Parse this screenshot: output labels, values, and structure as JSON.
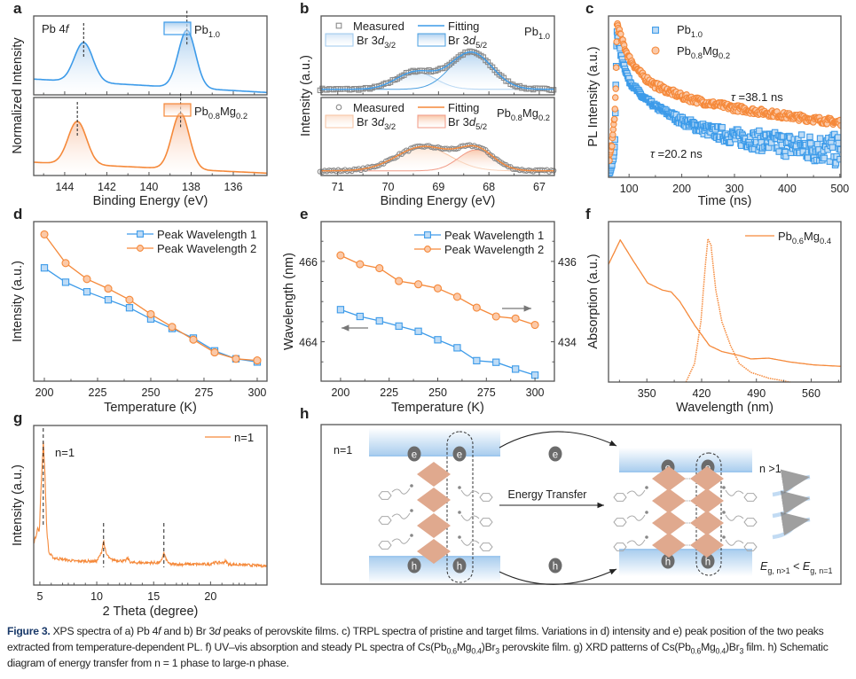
{
  "colors": {
    "blue": "#3d9be9",
    "blue_light": "#a9cdee",
    "orange": "#f5893a",
    "orange_light": "#f9c6a6",
    "frame": "#555555",
    "text": "#222222",
    "marker_gray": "#8a8a8a",
    "diamond": "#e0a98e",
    "carrier": "#6b6b6b"
  },
  "panel_labels": [
    "a",
    "b",
    "c",
    "d",
    "e",
    "f",
    "g",
    "h"
  ],
  "chart_data": [
    {
      "id": "a",
      "type": "line",
      "annotation": [
        {
          "t": "Pb 4"
        },
        {
          "t": "f",
          "it": 1
        }
      ],
      "xlabel": "Binding Energy (eV)",
      "ylabel": "Normalized Intensity",
      "xlim": [
        145.47,
        134.4
      ],
      "xticks": [
        144,
        142,
        140,
        138,
        136
      ],
      "ylim": [
        0,
        1
      ],
      "panels": [
        {
          "name": [
            {
              "t": "Pb"
            },
            {
              "t": "1.0",
              "sub": 1
            }
          ],
          "color": "blue",
          "baseline": [
            0.2,
            0.03
          ],
          "peaks": [
            {
              "center": 143.1,
              "height": 0.5,
              "width": 0.62
            },
            {
              "center": 138.2,
              "height": 0.73,
              "width": 0.58
            }
          ]
        },
        {
          "name": [
            {
              "t": "Pb"
            },
            {
              "t": "0.8",
              "sub": 1
            },
            {
              "t": "Mg"
            },
            {
              "t": "0.2",
              "sub": 1
            }
          ],
          "color": "orange",
          "baseline": [
            0.17,
            0.03
          ],
          "peaks": [
            {
              "center": 143.4,
              "height": 0.55,
              "width": 0.62
            },
            {
              "center": 138.5,
              "height": 0.72,
              "width": 0.58
            }
          ]
        }
      ]
    },
    {
      "id": "b",
      "type": "line",
      "xlabel": "Binding Energy (eV)",
      "ylabel": "Intensity (a.u.)",
      "xlim": [
        71.33,
        66.7
      ],
      "xticks": [
        71,
        70,
        69,
        68,
        67
      ],
      "ylim": [
        0,
        1
      ],
      "legend": {
        "measured": "Measured",
        "fitting": "Fitting",
        "br32": [
          {
            "t": "Br 3"
          },
          {
            "t": "d",
            "it": 1
          },
          {
            "t": "3/2",
            "sub": 1
          }
        ],
        "br52": [
          {
            "t": "Br 3"
          },
          {
            "t": "d",
            "it": 1
          },
          {
            "t": "5/2",
            "sub": 1
          }
        ]
      },
      "panels": [
        {
          "sample": [
            {
              "t": "Pb"
            },
            {
              "t": "1.0",
              "sub": 1
            }
          ],
          "color": "blue",
          "marker": "square",
          "baseline": 0.07,
          "components": [
            {
              "name": "Br 3d3/2",
              "center": 69.45,
              "height": 0.22,
              "width": 0.55
            },
            {
              "name": "Br 3d5/2",
              "center": 68.35,
              "height": 0.47,
              "width": 0.58
            }
          ]
        },
        {
          "sample": [
            {
              "t": "Pb"
            },
            {
              "t": "0.8",
              "sub": 1
            },
            {
              "t": "Mg"
            },
            {
              "t": "0.2",
              "sub": 1
            }
          ],
          "color": "orange",
          "marker": "circle",
          "baseline": 0.06,
          "components": [
            {
              "name": "Br 3d3/2",
              "center": 69.3,
              "height": 0.31,
              "width": 0.75
            },
            {
              "name": "Br 3d5/2",
              "center": 68.25,
              "height": 0.27,
              "width": 0.5
            }
          ]
        }
      ]
    },
    {
      "id": "c",
      "type": "scatter",
      "xlabel": "Time (ns)",
      "ylabel": "PL Intensity (a.u.)",
      "xlim": [
        61,
        502
      ],
      "xticks": [
        100,
        200,
        300,
        400,
        500
      ],
      "ylim": [
        0,
        1
      ],
      "series": [
        {
          "name": [
            {
              "t": "Pb"
            },
            {
              "t": "1.0",
              "sub": 1
            }
          ],
          "color": "blue",
          "marker": "square",
          "tau_ns": 20.2,
          "annotation": [
            {
              "t": "τ",
              "it": 1
            },
            {
              "t": " =20.2 ns"
            }
          ],
          "points": [
            [
              62,
              0.02
            ],
            [
              70,
              0.12
            ],
            [
              73,
              0.2
            ],
            [
              75,
              0.6
            ],
            [
              77,
              0.9
            ],
            [
              85,
              0.75
            ],
            [
              100,
              0.6
            ],
            [
              125,
              0.5
            ],
            [
              150,
              0.44
            ],
            [
              200,
              0.35
            ],
            [
              250,
              0.29
            ],
            [
              300,
              0.25
            ],
            [
              400,
              0.2
            ],
            [
              500,
              0.165
            ]
          ]
        },
        {
          "name": [
            {
              "t": "Pb"
            },
            {
              "t": "0.8",
              "sub": 1
            },
            {
              "t": "Mg"
            },
            {
              "t": "0.2",
              "sub": 1
            }
          ],
          "color": "orange",
          "marker": "circle",
          "tau_ns": 38.1,
          "annotation": [
            {
              "t": "τ",
              "it": 1
            },
            {
              "t": " =38.1 ns"
            }
          ],
          "points": [
            [
              62,
              0.1
            ],
            [
              68,
              0.22
            ],
            [
              73,
              0.4
            ],
            [
              75,
              0.55
            ],
            [
              77,
              0.96
            ],
            [
              85,
              0.86
            ],
            [
              100,
              0.74
            ],
            [
              125,
              0.63
            ],
            [
              150,
              0.57
            ],
            [
              200,
              0.5
            ],
            [
              250,
              0.46
            ],
            [
              300,
              0.43
            ],
            [
              400,
              0.38
            ],
            [
              500,
              0.34
            ]
          ]
        }
      ]
    },
    {
      "id": "d",
      "type": "line",
      "xlabel": "Temperature (K)",
      "ylabel": "Intensity (a.u.)",
      "xlim": [
        195,
        304.6
      ],
      "xticks": [
        200,
        225,
        250,
        275,
        300
      ],
      "ylim": [
        0,
        100
      ],
      "x": [
        200,
        210,
        220,
        230,
        240,
        250,
        260,
        270,
        280,
        290,
        300
      ],
      "series": [
        {
          "name": "Peak Wavelength 1",
          "color": "blue",
          "marker": "square",
          "values": [
            71,
            62,
            56,
            51,
            46,
            39,
            33,
            27,
            19,
            14,
            12
          ]
        },
        {
          "name": "Peak Wavelength 2",
          "color": "orange",
          "marker": "circle",
          "values": [
            92,
            74,
            64,
            58,
            51,
            42,
            34,
            26,
            18,
            14,
            13
          ]
        }
      ]
    },
    {
      "id": "e",
      "type": "line",
      "xlabel": "Temperature (K)",
      "ylabel": "Wavelength (nm)",
      "xlim": [
        190,
        310
      ],
      "xticks": [
        200,
        225,
        250,
        275,
        300
      ],
      "ylim_left": [
        463.02,
        466.99
      ],
      "yticks_left": [
        464,
        466
      ],
      "ylim_right": [
        433.02,
        436.99
      ],
      "yticks_right": [
        434,
        436
      ],
      "x": [
        200,
        210,
        220,
        230,
        240,
        250,
        260,
        270,
        280,
        290,
        300
      ],
      "series": [
        {
          "name": "Peak Wavelength 1",
          "axis": "left",
          "color": "blue",
          "marker": "square",
          "values": [
            464.8,
            464.63,
            464.52,
            464.39,
            464.26,
            464.05,
            463.85,
            463.53,
            463.49,
            463.32,
            463.17
          ]
        },
        {
          "name": "Peak Wavelength 2",
          "axis": "right",
          "color": "orange",
          "marker": "circle",
          "values": [
            436.15,
            435.93,
            435.83,
            435.51,
            435.43,
            435.33,
            435.12,
            434.85,
            434.63,
            434.58,
            434.42
          ]
        }
      ]
    },
    {
      "id": "f",
      "type": "line",
      "xlabel": "Wavelength (nm)",
      "ylabel": "Absorption (a.u.)",
      "xlim": [
        301,
        598
      ],
      "xticks": [
        350,
        420,
        490,
        560
      ],
      "ylim": [
        0,
        1
      ],
      "legend": [
        {
          "t": "Pb"
        },
        {
          "t": "0.6",
          "sub": 1
        },
        {
          "t": "Mg"
        },
        {
          "t": "0.4",
          "sub": 1
        }
      ],
      "series": [
        {
          "name": "absorption",
          "color": "orange",
          "style": "solid",
          "points": [
            [
              301,
              0.733
            ],
            [
              316,
              0.886
            ],
            [
              332,
              0.76
            ],
            [
              351,
              0.617
            ],
            [
              370,
              0.573
            ],
            [
              381,
              0.562
            ],
            [
              392,
              0.503
            ],
            [
              411,
              0.355
            ],
            [
              430,
              0.227
            ],
            [
              446,
              0.19
            ],
            [
              468,
              0.166
            ],
            [
              483,
              0.144
            ],
            [
              506,
              0.149
            ],
            [
              533,
              0.125
            ],
            [
              563,
              0.107
            ],
            [
              598,
              0.098
            ]
          ]
        },
        {
          "name": "PL",
          "color": "orange",
          "style": "dotted",
          "points": [
            [
              400,
              0
            ],
            [
              411,
              0.116
            ],
            [
              419,
              0.374
            ],
            [
              425,
              0.742
            ],
            [
              428,
              0.893
            ],
            [
              432,
              0.853
            ],
            [
              438,
              0.576
            ],
            [
              446,
              0.374
            ],
            [
              457,
              0.227
            ],
            [
              468,
              0.116
            ],
            [
              483,
              0.06
            ],
            [
              506,
              0.024
            ],
            [
              533,
              0
            ]
          ]
        }
      ]
    },
    {
      "id": "g",
      "type": "line",
      "xlabel": "2 Theta (degree)",
      "ylabel": "Intensity (a.u.)",
      "xlim": [
        4.46,
        24.96
      ],
      "xticks": [
        5,
        10,
        15,
        20
      ],
      "ylim": [
        0,
        1
      ],
      "legend": "n=1",
      "annotation": "n=1",
      "marked_peaks": [
        5.3,
        10.6,
        15.9
      ],
      "series": [
        {
          "name": "n=1",
          "color": "orange",
          "points": [
            [
              4.5,
              0.27
            ],
            [
              4.7,
              0.32
            ],
            [
              4.8,
              0.36
            ],
            [
              4.95,
              0.33
            ],
            [
              5.1,
              0.6
            ],
            [
              5.3,
              0.9
            ],
            [
              5.45,
              0.7
            ],
            [
              5.6,
              0.35
            ],
            [
              5.8,
              0.2
            ],
            [
              6.2,
              0.17
            ],
            [
              8,
              0.15
            ],
            [
              10,
              0.15
            ],
            [
              10.4,
              0.2
            ],
            [
              10.6,
              0.28
            ],
            [
              10.8,
              0.2
            ],
            [
              11.2,
              0.16
            ],
            [
              12.5,
              0.15
            ],
            [
              12.7,
              0.17
            ],
            [
              13,
              0.14
            ],
            [
              15.6,
              0.14
            ],
            [
              15.9,
              0.2
            ],
            [
              16.1,
              0.16
            ],
            [
              16.4,
              0.13
            ],
            [
              20,
              0.13
            ],
            [
              20.1,
              0.14
            ],
            [
              21.1,
              0.14
            ],
            [
              21.3,
              0.15
            ],
            [
              21.6,
              0.13
            ],
            [
              24.9,
              0.12
            ]
          ]
        }
      ]
    }
  ],
  "diagram": {
    "left_phase": "n=1",
    "right_phase": "n >1",
    "transfer_label": "Energy Transfer",
    "electron": "e",
    "hole": "h",
    "inequality": [
      {
        "t": "E",
        "it": 1
      },
      {
        "t": "g, n>1",
        "sub": 1
      },
      {
        "t": " < "
      },
      {
        "t": "E",
        "it": 1
      },
      {
        "t": "g, n=1",
        "sub": 1
      }
    ]
  },
  "caption": [
    {
      "t": "Figure 3.",
      "b": 1
    },
    {
      "t": " XPS spectra of a) Pb 4"
    },
    {
      "t": "f",
      "it": 1
    },
    {
      "t": " and b) Br 3"
    },
    {
      "t": "d",
      "it": 1
    },
    {
      "t": " peaks of perovskite films. c) TRPL spectra of pristine and target films. Variations in d) intensity and e) peak position of the two peaks extracted from temperature-dependent PL. f) UV–vis absorption and steady PL spectra of Cs(Pb"
    },
    {
      "t": "0.6",
      "sub": 1
    },
    {
      "t": "Mg"
    },
    {
      "t": "0.4",
      "sub": 1
    },
    {
      "t": ")Br"
    },
    {
      "t": "3",
      "sub": 1
    },
    {
      "t": " perovskite film. g) XRD patterns of Cs(Pb"
    },
    {
      "t": "0.6",
      "sub": 1
    },
    {
      "t": "Mg"
    },
    {
      "t": "0.4",
      "sub": 1
    },
    {
      "t": ")Br"
    },
    {
      "t": "3",
      "sub": 1
    },
    {
      "t": " film. h) Schematic diagram of energy transfer from n = 1 phase to large-n phase."
    }
  ]
}
